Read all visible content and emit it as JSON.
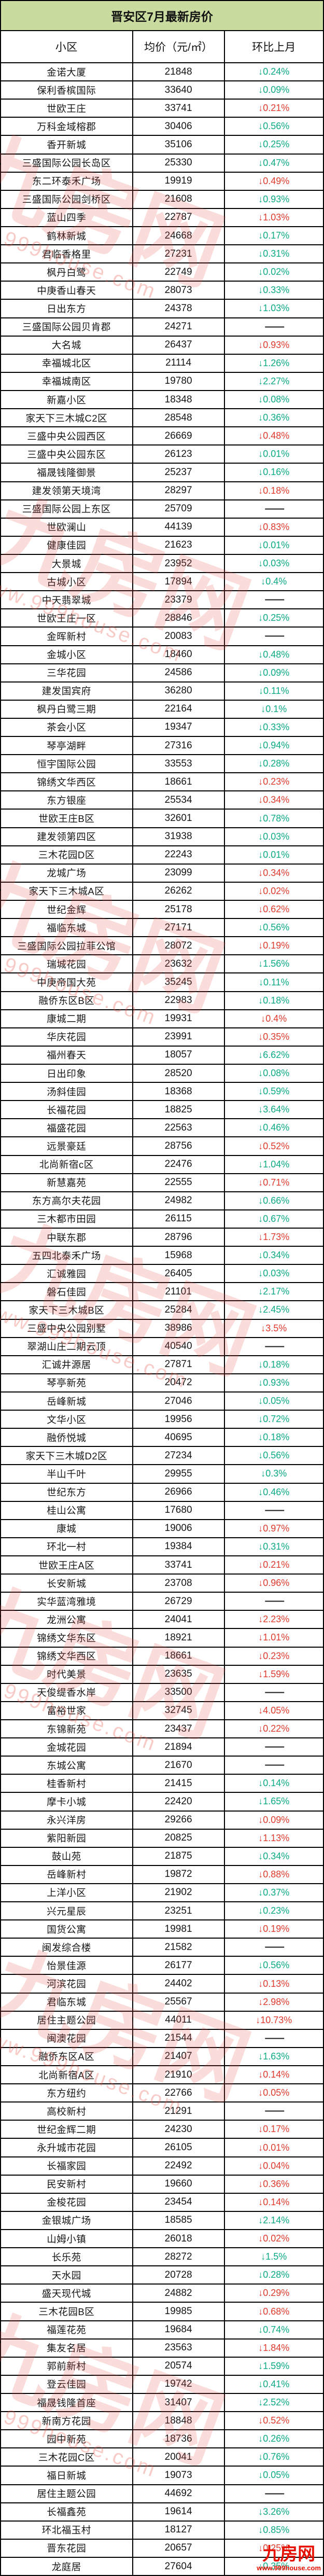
{
  "title": "晋安区7月最新房价",
  "columns": {
    "community": "小区",
    "price": "均价（元/㎡）",
    "mom": "环比上月"
  },
  "watermark": {
    "brand": "九房网",
    "url": "www.999house.com"
  },
  "colors": {
    "down_green": "#0caa85",
    "down_red": "#e03a2d",
    "flat": "#1a1a1a",
    "title_bg": "#c9db9f",
    "border": "#000000"
  },
  "rows": [
    {
      "name": "金诺大厦",
      "price": "21848",
      "change": "↓0.24%",
      "trend": "green"
    },
    {
      "name": "保利香槟国际",
      "price": "33640",
      "change": "↓0.09%",
      "trend": "green"
    },
    {
      "name": "世欧王庄",
      "price": "33741",
      "change": "↓0.21%",
      "trend": "red"
    },
    {
      "name": "万科金域榕郡",
      "price": "30406",
      "change": "↓0.56%",
      "trend": "green"
    },
    {
      "name": "香开新城",
      "price": "35106",
      "change": "↓0.25%",
      "trend": "green"
    },
    {
      "name": "三盛国际公园长岛区",
      "price": "25330",
      "change": "↓0.47%",
      "trend": "green"
    },
    {
      "name": "东二环泰禾广场",
      "price": "19919",
      "change": "↓0.49%",
      "trend": "red"
    },
    {
      "name": "三盛国际公园剑桥区",
      "price": "21608",
      "change": "↓0.93%",
      "trend": "green"
    },
    {
      "name": "蓝山四季",
      "price": "22787",
      "change": "↓1.03%",
      "trend": "red"
    },
    {
      "name": "鹤林新城",
      "price": "24668",
      "change": "↓0.17%",
      "trend": "green"
    },
    {
      "name": "君临香格里",
      "price": "27231",
      "change": "↓0.31%",
      "trend": "green"
    },
    {
      "name": "枫丹白鹭",
      "price": "22749",
      "change": "↓0.02%",
      "trend": "green"
    },
    {
      "name": "中庚香山春天",
      "price": "28073",
      "change": "↓0.33%",
      "trend": "green"
    },
    {
      "name": "日出东方",
      "price": "24378",
      "change": "↓1.03%",
      "trend": "green"
    },
    {
      "name": "三盛国际公园贝肯郡",
      "price": "24271",
      "change": "——",
      "trend": "flat"
    },
    {
      "name": "大名城",
      "price": "26437",
      "change": "↓0.93%",
      "trend": "red"
    },
    {
      "name": "幸福城北区",
      "price": "21114",
      "change": "↓1.26%",
      "trend": "green"
    },
    {
      "name": "幸福城南区",
      "price": "19780",
      "change": "↓2.27%",
      "trend": "green"
    },
    {
      "name": "新嘉小区",
      "price": "18348",
      "change": "↓0.08%",
      "trend": "green"
    },
    {
      "name": "家天下三木城C2区",
      "price": "28548",
      "change": "↓0.36%",
      "trend": "green"
    },
    {
      "name": "三盛中央公园西区",
      "price": "26669",
      "change": "↓0.48%",
      "trend": "red"
    },
    {
      "name": "三盛中央公园东区",
      "price": "26123",
      "change": "↓0.01%",
      "trend": "green"
    },
    {
      "name": "福晟钱隆御景",
      "price": "25237",
      "change": "↓0.16%",
      "trend": "green"
    },
    {
      "name": "建发领第天境湾",
      "price": "28297",
      "change": "↓0.18%",
      "trend": "red"
    },
    {
      "name": "三盛国际公园上东区",
      "price": "25709",
      "change": "——",
      "trend": "flat"
    },
    {
      "name": "世欧澜山",
      "price": "44139",
      "change": "↓0.83%",
      "trend": "red"
    },
    {
      "name": "健康佳园",
      "price": "21623",
      "change": "↓0.01%",
      "trend": "green"
    },
    {
      "name": "大景城",
      "price": "23952",
      "change": "↓0.03%",
      "trend": "green"
    },
    {
      "name": "古城小区",
      "price": "17894",
      "change": "↓0.4%",
      "trend": "green"
    },
    {
      "name": "中天翡翠城",
      "price": "23379",
      "change": "——",
      "trend": "flat"
    },
    {
      "name": "世欧王庄一区",
      "price": "28846",
      "change": "↓0.25%",
      "trend": "green"
    },
    {
      "name": "金晖新村",
      "price": "20083",
      "change": "——",
      "trend": "flat"
    },
    {
      "name": "金城小区",
      "price": "18460",
      "change": "↓0.48%",
      "trend": "green"
    },
    {
      "name": "三华花园",
      "price": "24586",
      "change": "↓0.09%",
      "trend": "green"
    },
    {
      "name": "建发国宾府",
      "price": "36280",
      "change": "↓0.11%",
      "trend": "green"
    },
    {
      "name": "枫丹白鹭三期",
      "price": "22164",
      "change": "↓0.1%",
      "trend": "green"
    },
    {
      "name": "茶会小区",
      "price": "19347",
      "change": "↓0.33%",
      "trend": "green"
    },
    {
      "name": "琴亭湖畔",
      "price": "27316",
      "change": "↓0.94%",
      "trend": "green"
    },
    {
      "name": "恒宇国际公园",
      "price": "33553",
      "change": "↓0.28%",
      "trend": "green"
    },
    {
      "name": "锦绣文华西区",
      "price": "18661",
      "change": "↓0.23%",
      "trend": "red"
    },
    {
      "name": "东方银座",
      "price": "25534",
      "change": "↓0.34%",
      "trend": "red"
    },
    {
      "name": "世欧王庄B区",
      "price": "32601",
      "change": "↓0.78%",
      "trend": "green"
    },
    {
      "name": "建发领第四区",
      "price": "31938",
      "change": "↓0.03%",
      "trend": "green"
    },
    {
      "name": "三木花园D区",
      "price": "22243",
      "change": "↓0.01%",
      "trend": "green"
    },
    {
      "name": "龙城广场",
      "price": "23099",
      "change": "↓0.34%",
      "trend": "red"
    },
    {
      "name": "家天下三木城A区",
      "price": "26262",
      "change": "↓0.02%",
      "trend": "red"
    },
    {
      "name": "世纪金辉",
      "price": "25178",
      "change": "↓0.62%",
      "trend": "red"
    },
    {
      "name": "福临东城",
      "price": "27171",
      "change": "↓0.56%",
      "trend": "green"
    },
    {
      "name": "三盛国际公园拉菲公馆",
      "price": "28072",
      "change": "↓0.19%",
      "trend": "red"
    },
    {
      "name": "瑞城花园",
      "price": "23632",
      "change": "↓1.56%",
      "trend": "green"
    },
    {
      "name": "中庚帝国大苑",
      "price": "35245",
      "change": "↓0.11%",
      "trend": "green"
    },
    {
      "name": "融侨东区B区",
      "price": "22983",
      "change": "↓0.18%",
      "trend": "green"
    },
    {
      "name": "康城二期",
      "price": "19931",
      "change": "↓0.4%",
      "trend": "red"
    },
    {
      "name": "华庆花园",
      "price": "23991",
      "change": "↓0.35%",
      "trend": "red"
    },
    {
      "name": "福州春天",
      "price": "18057",
      "change": "↓6.62%",
      "trend": "green"
    },
    {
      "name": "日出印象",
      "price": "28520",
      "change": "↓0.08%",
      "trend": "green"
    },
    {
      "name": "汤斜佳园",
      "price": "18368",
      "change": "↓0.59%",
      "trend": "green"
    },
    {
      "name": "长福花园",
      "price": "18825",
      "change": "↓3.64%",
      "trend": "green"
    },
    {
      "name": "福盛花园",
      "price": "22563",
      "change": "↓0.46%",
      "trend": "green"
    },
    {
      "name": "远景豪廷",
      "price": "28756",
      "change": "↓0.52%",
      "trend": "red"
    },
    {
      "name": "北尚新宿c区",
      "price": "22476",
      "change": "↓1.04%",
      "trend": "green"
    },
    {
      "name": "新慧嘉苑",
      "price": "22555",
      "change": "↓0.71%",
      "trend": "red"
    },
    {
      "name": "东方高尔夫花园",
      "price": "24982",
      "change": "↓0.66%",
      "trend": "green"
    },
    {
      "name": "三木都市田园",
      "price": "26115",
      "change": "↓0.67%",
      "trend": "green"
    },
    {
      "name": "中联东郡",
      "price": "28796",
      "change": "↓1.73%",
      "trend": "red"
    },
    {
      "name": "五四北泰禾广场",
      "price": "15968",
      "change": "↓0.34%",
      "trend": "green"
    },
    {
      "name": "汇诚雅园",
      "price": "26405",
      "change": "↓0.03%",
      "trend": "green"
    },
    {
      "name": "磐石佳园",
      "price": "21101",
      "change": "↓2.17%",
      "trend": "green"
    },
    {
      "name": "家天下三木城B区",
      "price": "25284",
      "change": "↓2.45%",
      "trend": "green"
    },
    {
      "name": "三盛中央公园别墅",
      "price": "38986",
      "change": "↓3.5%",
      "trend": "red"
    },
    {
      "name": "翠湖山庄二期云顶",
      "price": "40540",
      "change": "——",
      "trend": "flat"
    },
    {
      "name": "汇诚井源居",
      "price": "27871",
      "change": "↓0.18%",
      "trend": "green"
    },
    {
      "name": "琴亭新苑",
      "price": "20472",
      "change": "↓0.93%",
      "trend": "green"
    },
    {
      "name": "岳峰新城",
      "price": "27046",
      "change": "↓0.05%",
      "trend": "green"
    },
    {
      "name": "文华小区",
      "price": "19956",
      "change": "↓0.72%",
      "trend": "green"
    },
    {
      "name": "融侨悦城",
      "price": "40695",
      "change": "↓0.18%",
      "trend": "green"
    },
    {
      "name": "家天下三木城D2区",
      "price": "27234",
      "change": "↓0.56%",
      "trend": "green"
    },
    {
      "name": "半山千叶",
      "price": "29955",
      "change": "↓0.3%",
      "trend": "green"
    },
    {
      "name": "世纪东方",
      "price": "26966",
      "change": "↓0.46%",
      "trend": "green"
    },
    {
      "name": "桂山公寓",
      "price": "17680",
      "change": "——",
      "trend": "flat"
    },
    {
      "name": "康城",
      "price": "19006",
      "change": "↓0.97%",
      "trend": "red"
    },
    {
      "name": "环北一村",
      "price": "19384",
      "change": "↓0.31%",
      "trend": "green"
    },
    {
      "name": "世欧王庄A区",
      "price": "33741",
      "change": "↓0.21%",
      "trend": "red"
    },
    {
      "name": "长安新城",
      "price": "23708",
      "change": "↓0.96%",
      "trend": "red"
    },
    {
      "name": "实华蓝湾雅境",
      "price": "26729",
      "change": "——",
      "trend": "flat"
    },
    {
      "name": "龙洲公寓",
      "price": "24041",
      "change": "↓2.23%",
      "trend": "red"
    },
    {
      "name": "锦绣文华东区",
      "price": "18921",
      "change": "↓1.01%",
      "trend": "red"
    },
    {
      "name": "锦绣文华西区",
      "price": "18661",
      "change": "↓0.23%",
      "trend": "red"
    },
    {
      "name": "时代美景",
      "price": "23635",
      "change": "↓1.59%",
      "trend": "red"
    },
    {
      "name": "天俊缇香水岸",
      "price": "33500",
      "change": "——",
      "trend": "flat"
    },
    {
      "name": "富裕世家",
      "price": "32745",
      "change": "↓4.05%",
      "trend": "red"
    },
    {
      "name": "东锦新苑",
      "price": "23437",
      "change": "↓0.22%",
      "trend": "red"
    },
    {
      "name": "金城花园",
      "price": "21894",
      "change": "——",
      "trend": "flat"
    },
    {
      "name": "东城公寓",
      "price": "21670",
      "change": "——",
      "trend": "flat"
    },
    {
      "name": "桂香新村",
      "price": "21415",
      "change": "↓0.14%",
      "trend": "green"
    },
    {
      "name": "摩卡小城",
      "price": "22420",
      "change": "↓1.65%",
      "trend": "green"
    },
    {
      "name": "永兴洋房",
      "price": "29266",
      "change": "↓0.09%",
      "trend": "red"
    },
    {
      "name": "紫阳新园",
      "price": "20825",
      "change": "↓1.13%",
      "trend": "red"
    },
    {
      "name": "鼓山苑",
      "price": "21875",
      "change": "↓0.34%",
      "trend": "green"
    },
    {
      "name": "岳峰新村",
      "price": "19872",
      "change": "↓0.88%",
      "trend": "red"
    },
    {
      "name": "上洋小区",
      "price": "21902",
      "change": "↓0.37%",
      "trend": "green"
    },
    {
      "name": "兴元星辰",
      "price": "23251",
      "change": "↓0.23%",
      "trend": "green"
    },
    {
      "name": "国货公寓",
      "price": "19981",
      "change": "↓0.19%",
      "trend": "red"
    },
    {
      "name": "闽发综合楼",
      "price": "21582",
      "change": "——",
      "trend": "flat"
    },
    {
      "name": "怡景佳源",
      "price": "26177",
      "change": "↓0.56%",
      "trend": "green"
    },
    {
      "name": "河滨花园",
      "price": "24402",
      "change": "↓0.13%",
      "trend": "red"
    },
    {
      "name": "君临东城",
      "price": "25567",
      "change": "↓2.98%",
      "trend": "red"
    },
    {
      "name": "居住主题公园",
      "price": "44011",
      "change": "↓10.73%",
      "trend": "red"
    },
    {
      "name": "闽澳花园",
      "price": "21544",
      "change": "——",
      "trend": "flat"
    },
    {
      "name": "融侨东区A区",
      "price": "21407",
      "change": "↓1.63%",
      "trend": "green"
    },
    {
      "name": "北尚新宿A区",
      "price": "21910",
      "change": "↓0.14%",
      "trend": "red"
    },
    {
      "name": "东方纽约",
      "price": "22766",
      "change": "↓0.05%",
      "trend": "red"
    },
    {
      "name": "高校新村",
      "price": "21291",
      "change": "——",
      "trend": "flat"
    },
    {
      "name": "世纪金辉二期",
      "price": "24230",
      "change": "↓0.17%",
      "trend": "red"
    },
    {
      "name": "永升城市花园",
      "price": "26105",
      "change": "↓0.01%",
      "trend": "red"
    },
    {
      "name": "长福家园",
      "price": "22492",
      "change": "↓0.04%",
      "trend": "red"
    },
    {
      "name": "民安新村",
      "price": "19660",
      "change": "↓0.36%",
      "trend": "red"
    },
    {
      "name": "金梭花园",
      "price": "23454",
      "change": "↓0.14%",
      "trend": "red"
    },
    {
      "name": "金银城广场",
      "price": "18585",
      "change": "↓2.14%",
      "trend": "green"
    },
    {
      "name": "山姆小镇",
      "price": "26018",
      "change": "↓0.02%",
      "trend": "red"
    },
    {
      "name": "长乐苑",
      "price": "28272",
      "change": "↓1.5%",
      "trend": "green"
    },
    {
      "name": "天水园",
      "price": "20728",
      "change": "↓0.28%",
      "trend": "green"
    },
    {
      "name": "盛天现代城",
      "price": "24882",
      "change": "↓0.29%",
      "trend": "red"
    },
    {
      "name": "三木花园B区",
      "price": "19985",
      "change": "↓0.68%",
      "trend": "red"
    },
    {
      "name": "福莲花苑",
      "price": "19684",
      "change": "↓0.74%",
      "trend": "green"
    },
    {
      "name": "集友名居",
      "price": "23563",
      "change": "↓1.84%",
      "trend": "red"
    },
    {
      "name": "郭前新村",
      "price": "20574",
      "change": "↓1.59%",
      "trend": "green"
    },
    {
      "name": "登云佳园",
      "price": "19742",
      "change": "↓0.41%",
      "trend": "green"
    },
    {
      "name": "福晟钱隆首座",
      "price": "31407",
      "change": "↓2.52%",
      "trend": "green"
    },
    {
      "name": "新南方花园",
      "price": "18848",
      "change": "↓0.52%",
      "trend": "red"
    },
    {
      "name": "园中新苑",
      "price": "18736",
      "change": "↓0.26%",
      "trend": "green"
    },
    {
      "name": "三木花园C区",
      "price": "20041",
      "change": "↓0.76%",
      "trend": "green"
    },
    {
      "name": "福日新城",
      "price": "19073",
      "change": "↓0.05%",
      "trend": "green"
    },
    {
      "name": "居住主题公园",
      "price": "44692",
      "change": "——",
      "trend": "flat"
    },
    {
      "name": "长福鑫苑",
      "price": "19614",
      "change": "↓3.26%",
      "trend": "green"
    },
    {
      "name": "环北福玉村",
      "price": "18127",
      "change": "↓0.85%",
      "trend": "green"
    },
    {
      "name": "晋东花园",
      "price": "20657",
      "change": "↓0.25%",
      "trend": "red"
    },
    {
      "name": "龙庭居",
      "price": "27604",
      "change": "↓0.35%",
      "trend": "green"
    }
  ]
}
